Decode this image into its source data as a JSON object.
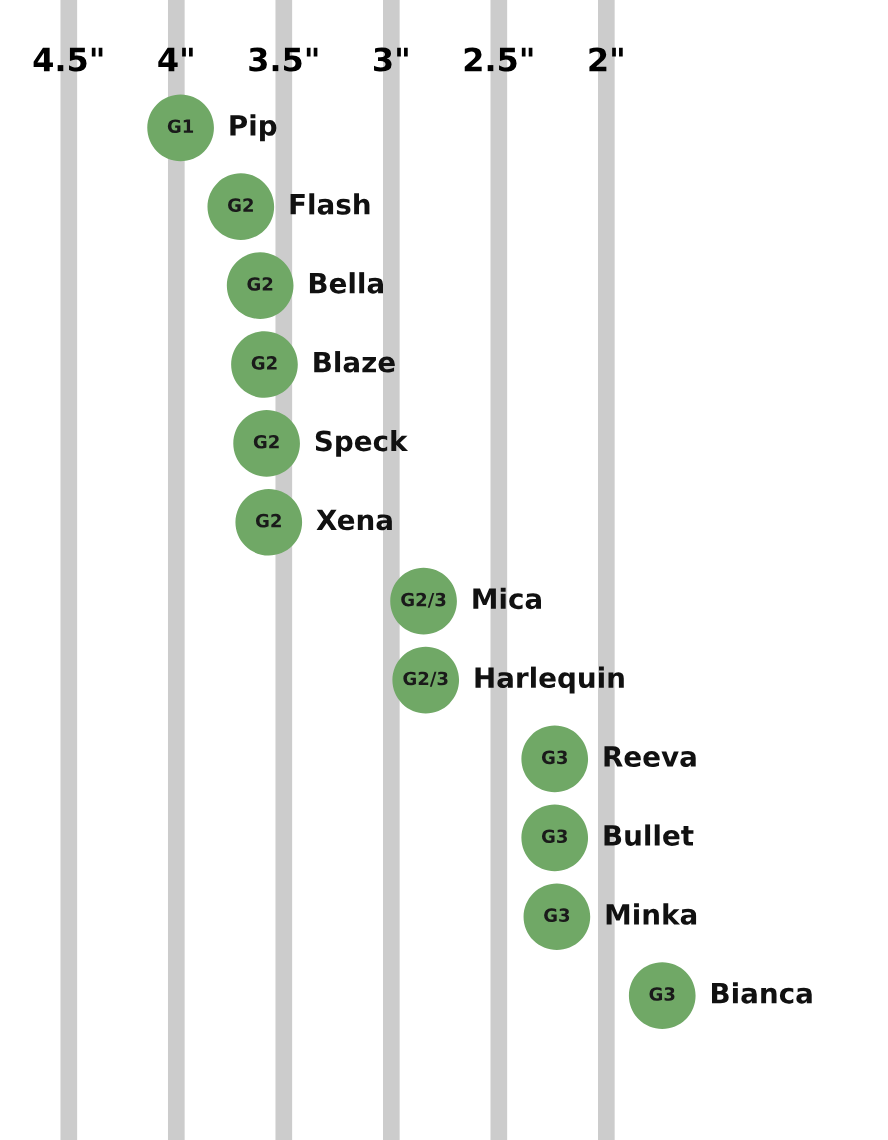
{
  "chart_data": {
    "type": "scatter",
    "orientation": "horizontal",
    "categories": [
      "Pip",
      "Flash",
      "Bella",
      "Blaze",
      "Speck",
      "Xena",
      "Mica",
      "Harlequin",
      "Reeva",
      "Bullet",
      "Minka",
      "Bianca"
    ],
    "values": [
      3.98,
      3.7,
      3.61,
      3.59,
      3.58,
      3.57,
      2.85,
      2.84,
      2.24,
      2.24,
      2.23,
      1.74
    ],
    "value_labels": [
      "G1",
      "G2",
      "G2",
      "G2",
      "G2",
      "G2",
      "G2/3",
      "G2/3",
      "G3",
      "G3",
      "G3",
      "G3"
    ],
    "color": "#70a866",
    "xlim": [
      4.82,
      0.69
    ],
    "xticks": [
      {
        "value": 4.5,
        "label": "4.5\""
      },
      {
        "value": 4,
        "label": "4\""
      },
      {
        "value": 3.5,
        "label": "3.5\""
      },
      {
        "value": 3,
        "label": "3\""
      },
      {
        "value": 2.5,
        "label": "2.5\""
      },
      {
        "value": 2,
        "label": "2\""
      }
    ],
    "grid": "x",
    "marker": "circle"
  }
}
